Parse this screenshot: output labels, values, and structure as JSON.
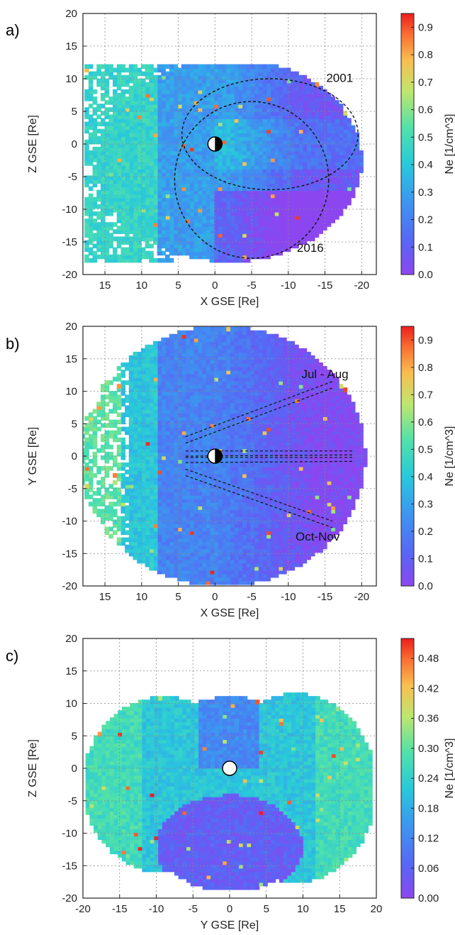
{
  "chart_data": [
    {
      "panel": "a)",
      "type": "heatmap",
      "xlabel": "X GSE [Re]",
      "ylabel": "Z GSE [Re]",
      "xlim": [
        18,
        -22
      ],
      "ylim": [
        -20,
        20
      ],
      "xticks": [
        15,
        10,
        5,
        0,
        -5,
        -10,
        -15,
        -20
      ],
      "yticks": [
        -20,
        -15,
        -10,
        -5,
        0,
        5,
        10,
        15,
        20
      ],
      "grid": true,
      "colorbar": {
        "label": "Ne [1/cm^3]",
        "range": [
          0.0,
          0.95
        ],
        "ticks": [
          0.0,
          0.1,
          0.2,
          0.3,
          0.4,
          0.5,
          0.6,
          0.7,
          0.8,
          0.9
        ]
      },
      "annotations": [
        {
          "text": "2001",
          "x": -17,
          "y": 9.5
        },
        {
          "text": "2016",
          "x": -13,
          "y": -16.5
        }
      ],
      "orbits": [
        {
          "name": "2001",
          "center": [
            -7.5,
            1.5
          ],
          "radii": [
            12,
            8.5
          ]
        },
        {
          "name": "2016",
          "center": [
            -5,
            -5.5
          ],
          "radii": [
            10.5,
            12
          ]
        }
      ],
      "earth_marker": [
        0,
        0
      ]
    },
    {
      "panel": "b)",
      "type": "heatmap",
      "xlabel": "X GSE [Re]",
      "ylabel": "Y GSE [Re]",
      "xlim": [
        18,
        -22
      ],
      "ylim": [
        -20,
        20
      ],
      "xticks": [
        15,
        10,
        5,
        0,
        -5,
        -10,
        -15,
        -20
      ],
      "yticks": [
        -20,
        -15,
        -10,
        -5,
        0,
        5,
        10,
        15,
        20
      ],
      "grid": true,
      "colorbar": {
        "label": "Ne [1/cm^3]",
        "range": [
          0.0,
          0.95
        ],
        "ticks": [
          0.0,
          0.1,
          0.2,
          0.3,
          0.4,
          0.5,
          0.6,
          0.7,
          0.8,
          0.9
        ]
      },
      "annotations": [
        {
          "text": "Jul - Aug",
          "x": -15,
          "y": 12
        },
        {
          "text": "Oct-Nov",
          "x": -14,
          "y": -13
        }
      ],
      "orbit_lines": [
        {
          "from": [
            4,
            2.5
          ],
          "to": [
            -16,
            11
          ]
        },
        {
          "from": [
            4,
            -0.5
          ],
          "to": [
            -19,
            -0.3
          ]
        },
        {
          "from": [
            4,
            0.3
          ],
          "to": [
            -19,
            0.3
          ]
        },
        {
          "from": [
            4,
            -2.5
          ],
          "to": [
            -16,
            -10.5
          ]
        }
      ],
      "earth_marker": [
        0,
        0
      ]
    },
    {
      "panel": "c)",
      "type": "heatmap",
      "xlabel": "Y GSE [Re]",
      "ylabel": "Z GSE [Re]",
      "xlim": [
        -20,
        20
      ],
      "ylim": [
        -20,
        20
      ],
      "xticks": [
        -20,
        -15,
        -10,
        -5,
        0,
        5,
        10,
        15,
        20
      ],
      "yticks": [
        -20,
        -15,
        -10,
        -5,
        0,
        5,
        10,
        15,
        20
      ],
      "grid": true,
      "colorbar": {
        "label": "Ne [1/cm^3]",
        "range": [
          0.0,
          0.52
        ],
        "ticks": [
          0.0,
          0.06,
          0.12,
          0.18,
          0.24,
          0.3,
          0.36,
          0.42,
          0.48
        ],
        "tick_labels": [
          "0.00",
          "0.06",
          "0.12",
          "0.18",
          "0.24",
          "0.30",
          "0.36",
          "0.42",
          "0.48"
        ]
      },
      "earth_marker": [
        0,
        0
      ]
    }
  ]
}
